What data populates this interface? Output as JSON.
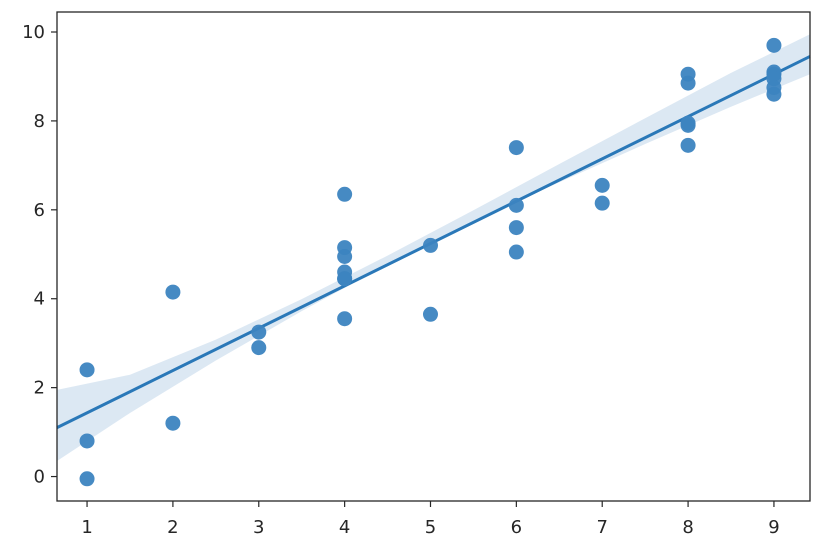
{
  "chart_data": {
    "type": "scatter",
    "title": "",
    "xlabel": "",
    "ylabel": "",
    "xlim": [
      0.65,
      9.42
    ],
    "ylim": [
      -0.55,
      10.45
    ],
    "xticks": [
      1,
      2,
      3,
      4,
      5,
      6,
      7,
      8,
      9
    ],
    "xtick_labels": [
      "1",
      "2",
      "3",
      "4",
      "5",
      "6",
      "7",
      "8",
      "9"
    ],
    "yticks": [
      0,
      2,
      4,
      6,
      8,
      10
    ],
    "ytick_labels": [
      "0",
      "2",
      "4",
      "6",
      "8",
      "10"
    ],
    "grid": false,
    "points": {
      "x": [
        1,
        1,
        1,
        2,
        2,
        3,
        3,
        4,
        4,
        4,
        4,
        4,
        4,
        4,
        5,
        5,
        6,
        6,
        6,
        6,
        7,
        7,
        8,
        8,
        8,
        8,
        8,
        9,
        9,
        9,
        9,
        9,
        9
      ],
      "y": [
        2.4,
        0.8,
        -0.05,
        4.15,
        1.2,
        3.25,
        2.9,
        6.35,
        5.15,
        4.95,
        4.6,
        4.45,
        3.55,
        4.45,
        5.2,
        3.65,
        7.4,
        6.1,
        5.6,
        5.05,
        6.55,
        6.15,
        9.05,
        8.85,
        7.95,
        7.9,
        7.45,
        9.7,
        9.1,
        9.05,
        8.95,
        8.75,
        8.6
      ]
    },
    "regression": {
      "x": [
        0.65,
        9.42
      ],
      "y": [
        1.1,
        9.45
      ]
    },
    "confidence_band": {
      "x": [
        0.65,
        1.5,
        2.5,
        3.5,
        4.5,
        5.5,
        6.5,
        7.5,
        8.5,
        9.42
      ],
      "lower": [
        0.35,
        1.43,
        2.61,
        3.72,
        4.77,
        5.74,
        6.62,
        7.48,
        8.32,
        9.05
      ],
      "upper": [
        1.95,
        2.29,
        3.08,
        3.99,
        4.97,
        5.99,
        7.03,
        8.06,
        9.08,
        9.95
      ]
    },
    "colors": {
      "points": "#3c84c0",
      "line": "#2a78b8",
      "band": "#d8e6f2",
      "axes": "#262626"
    }
  }
}
